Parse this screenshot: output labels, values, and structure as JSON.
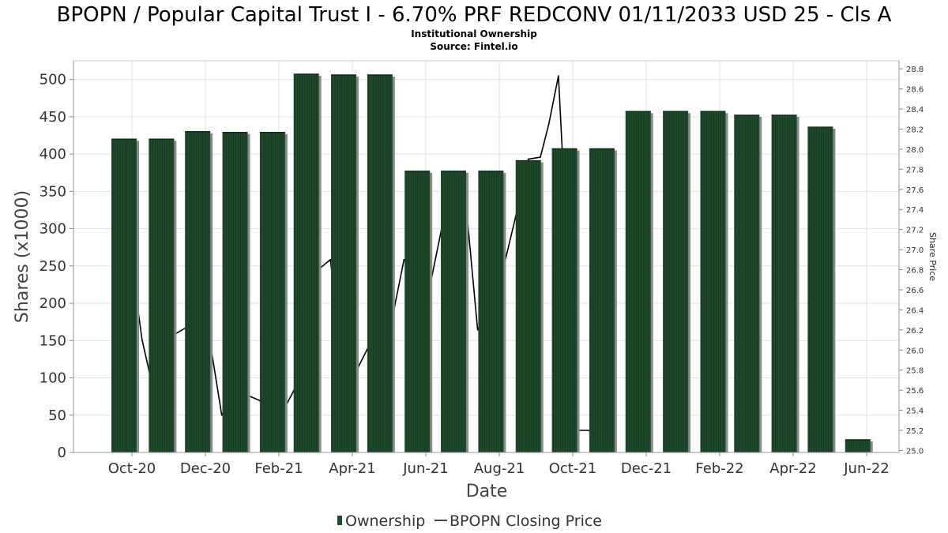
{
  "title": "BPOPN / Popular Capital Trust I - 6.70% PRF REDCONV 01/11/2033 USD 25 - Cls A",
  "subtitle": "Institutional Ownership",
  "source": "Source: Fintel.io",
  "colors": {
    "bar": "#1f4a2c",
    "bar_shadow": "#8a8a8a",
    "line": "#000000",
    "grid": "#e3e3e3"
  },
  "chart_data": {
    "type": "bar",
    "xlabel": "Date",
    "ylabel": "Shares (x1000)",
    "y2label": "Share Price",
    "ylim": [
      0,
      525
    ],
    "y2lim": [
      24.98,
      28.88
    ],
    "yticks": [
      0,
      50,
      100,
      150,
      200,
      250,
      300,
      350,
      400,
      450,
      500
    ],
    "y2ticks": [
      "25.0",
      "25.2",
      "25.4",
      "25.6",
      "25.8",
      "26.0",
      "26.2",
      "26.4",
      "26.6",
      "26.8",
      "27.0",
      "27.2",
      "27.4",
      "27.6",
      "27.8",
      "28.0",
      "28.2",
      "28.4",
      "28.6",
      "28.8"
    ],
    "xticks": [
      "Oct-20",
      "Dec-20",
      "Feb-21",
      "Apr-21",
      "Jun-21",
      "Aug-21",
      "Oct-21",
      "Dec-21",
      "Feb-22",
      "Apr-22",
      "Jun-22"
    ],
    "grid": true,
    "legend_position": "bottom",
    "series": [
      {
        "name": "Ownership",
        "type": "bar",
        "axis": "left",
        "x": [
          "2020-10-01",
          "2020-11-01",
          "2020-12-01",
          "2021-01-01",
          "2021-02-01",
          "2021-03-01",
          "2021-04-01",
          "2021-05-01",
          "2021-06-01",
          "2021-07-01",
          "2021-08-01",
          "2021-09-01",
          "2021-10-01",
          "2021-11-01",
          "2021-12-01",
          "2022-01-01",
          "2022-02-01",
          "2022-03-01",
          "2022-04-01",
          "2022-05-01",
          "2022-06-01"
        ],
        "values": [
          420,
          420,
          430,
          429,
          429,
          507,
          506,
          506,
          377,
          377,
          377,
          391,
          407,
          407,
          457,
          457,
          457,
          452,
          452,
          436,
          17
        ]
      },
      {
        "name": "BPOPN Closing Price",
        "type": "line",
        "axis": "right",
        "x": [
          "2020-10-01",
          "2020-10-16",
          "2020-10-22",
          "2020-11-01",
          "2020-11-11",
          "2020-11-21",
          "2020-12-01",
          "2020-12-11",
          "2020-12-21",
          "2021-01-01",
          "2021-01-11",
          "2021-01-21",
          "2021-02-01",
          "2021-02-11",
          "2021-02-21",
          "2021-03-01",
          "2021-03-11",
          "2021-03-21",
          "2021-04-01",
          "2021-04-11",
          "2021-04-21",
          "2021-05-01",
          "2021-05-11",
          "2021-05-21",
          "2021-06-01",
          "2021-06-11",
          "2021-06-21",
          "2021-07-01",
          "2021-07-11",
          "2021-07-21",
          "2021-08-01",
          "2021-08-11",
          "2021-08-21",
          "2021-09-01",
          "2021-09-11",
          "2021-09-18",
          "2021-09-26",
          "2021-10-02",
          "2021-10-10",
          "2021-10-20",
          "2021-11-01"
        ],
        "values": [
          27.4,
          26.1,
          25.78,
          26.8,
          26.15,
          26.22,
          26.4,
          26.1,
          25.35,
          25.6,
          25.55,
          25.5,
          25.4,
          25.42,
          25.65,
          26.2,
          26.8,
          26.9,
          25.8,
          25.78,
          26.02,
          26.15,
          26.3,
          26.9,
          26.8,
          26.61,
          27.2,
          27.78,
          27.5,
          26.2,
          26.5,
          26.8,
          27.3,
          27.9,
          27.92,
          28.25,
          28.73,
          27.3,
          25.2,
          25.2,
          25.18
        ]
      }
    ]
  }
}
